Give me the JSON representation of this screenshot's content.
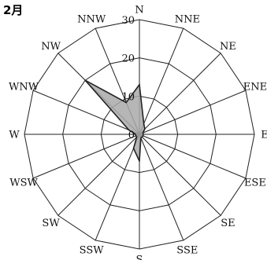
{
  "chart_data": {
    "type": "radar",
    "title": "2月",
    "directions": [
      "N",
      "NNE",
      "NE",
      "ENE",
      "E",
      "ESE",
      "SE",
      "SSE",
      "S",
      "SSW",
      "SW",
      "WSW",
      "W",
      "WNW",
      "NW",
      "NNW"
    ],
    "rlim": [
      0,
      30
    ],
    "rticks": [
      0,
      10,
      20,
      30
    ],
    "rtick_labels": [
      "0",
      "10",
      "20",
      "30"
    ],
    "values": [
      13,
      3,
      2,
      1,
      1,
      1,
      1,
      1,
      7,
      4,
      1,
      1,
      1,
      3,
      20,
      9
    ],
    "fill_color": "#a9a9a9",
    "line_color": "#222222",
    "grid": true
  }
}
